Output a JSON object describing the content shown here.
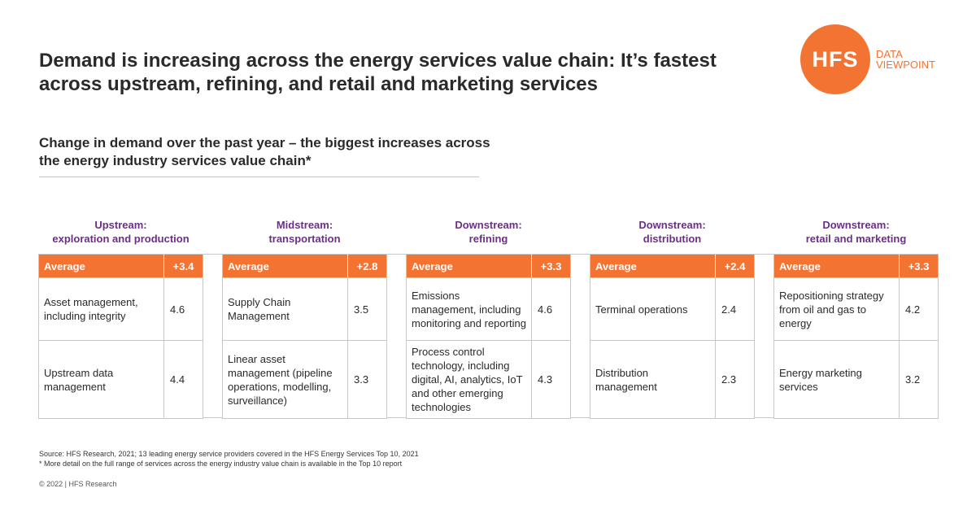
{
  "title": "Demand is increasing across the energy services value chain: It’s fastest across upstream, refining, and retail and marketing services",
  "logo": {
    "mark": "HFS",
    "line1": "DATA",
    "line2": "VIEWPOINT",
    "color": "#f27332"
  },
  "subtitle": "Change in demand over the past year – the biggest increases across the energy industry services value chain*",
  "colors": {
    "accent": "#f27332",
    "segment_title": "#6b2f86",
    "border": "#c8c8c8"
  },
  "chart_data": {
    "type": "table",
    "segments": [
      {
        "title_line1": "Upstream:",
        "title_line2": "exploration and production",
        "average_label": "Average",
        "average": "+3.4",
        "rows": [
          {
            "service": "Asset management, including integrity",
            "score": "4.6"
          },
          {
            "service": "Upstream data management",
            "score": "4.4"
          }
        ]
      },
      {
        "title_line1": "Midstream:",
        "title_line2": "transportation",
        "average_label": "Average",
        "average": "+2.8",
        "rows": [
          {
            "service": "Supply Chain Management",
            "score": "3.5"
          },
          {
            "service": "Linear asset management (pipeline operations, modelling, surveillance)",
            "score": "3.3"
          }
        ]
      },
      {
        "title_line1": "Downstream:",
        "title_line2": "refining",
        "average_label": "Average",
        "average": "+3.3",
        "rows": [
          {
            "service": "Emissions management, including monitoring and reporting",
            "score": "4.6"
          },
          {
            "service": "Process control technology, including digital, AI, analytics, IoT and other emerging technologies",
            "score": "4.3"
          }
        ]
      },
      {
        "title_line1": "Downstream:",
        "title_line2": "distribution",
        "average_label": "Average",
        "average": "+2.4",
        "rows": [
          {
            "service": "Terminal operations",
            "score": "2.4"
          },
          {
            "service": "Distribution management",
            "score": "2.3"
          }
        ]
      },
      {
        "title_line1": "Downstream:",
        "title_line2": "retail and marketing",
        "average_label": "Average",
        "average": "+3.3",
        "rows": [
          {
            "service": "Repositioning strategy from oil and gas to energy",
            "score": "4.2"
          },
          {
            "service": "Energy marketing services",
            "score": "3.2"
          }
        ]
      }
    ]
  },
  "source_line1": "Source: HFS Research, 2021; 13 leading energy service providers covered in the HFS Energy Services Top 10, 2021",
  "source_line2": "* More detail on the full range of services across the energy industry value chain is available in the Top 10 report",
  "copyright": "© 2022 | HFS Research"
}
